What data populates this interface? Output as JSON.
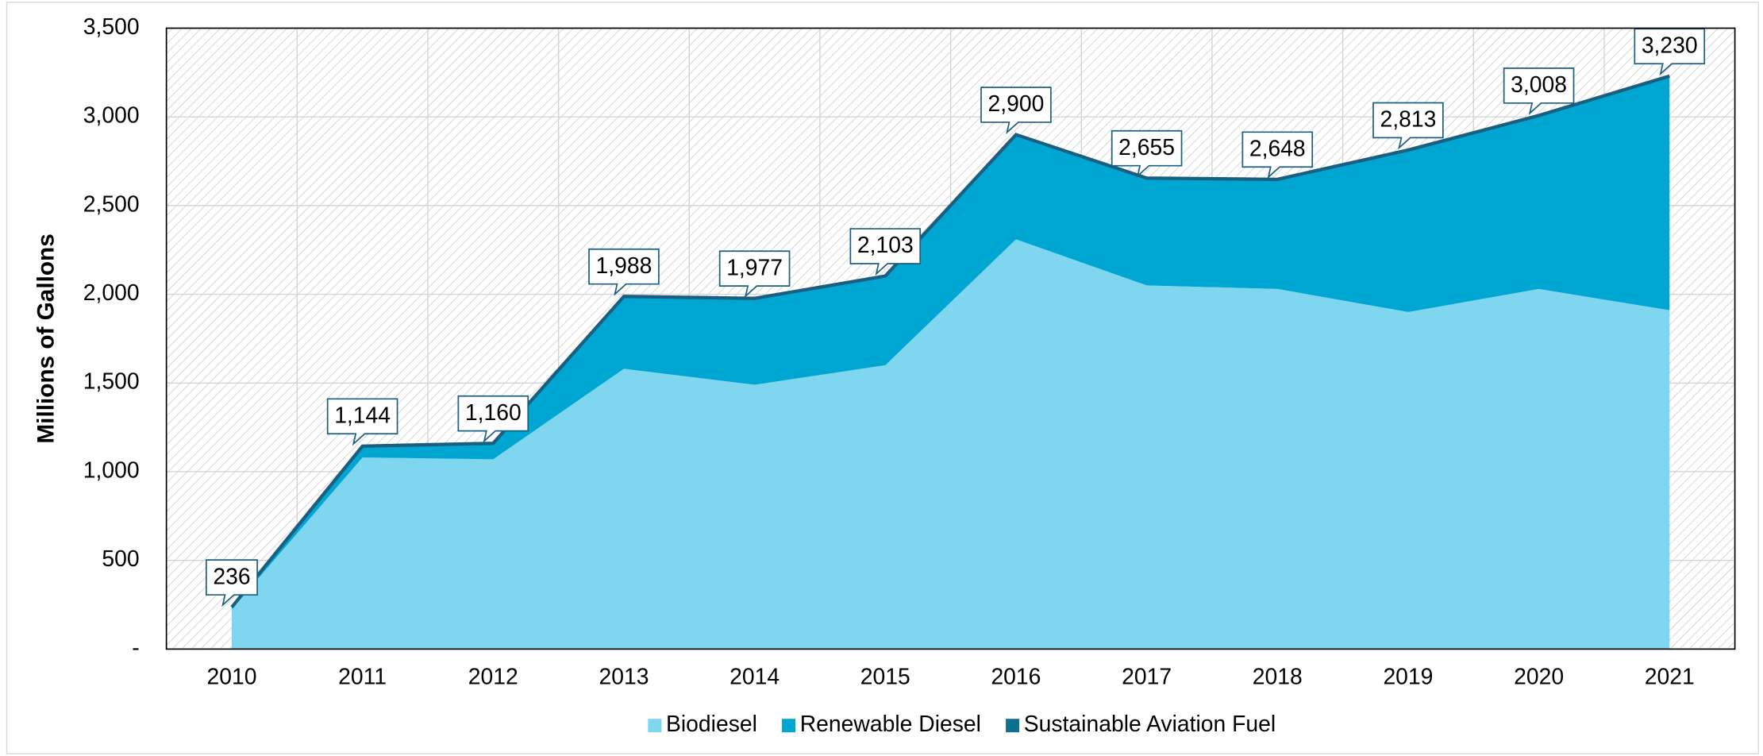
{
  "chart_data": {
    "type": "stacked_area",
    "y_axis_label": "Millions of Gallons",
    "categories": [
      "2010",
      "2011",
      "2012",
      "2013",
      "2014",
      "2015",
      "2016",
      "2017",
      "2018",
      "2019",
      "2020",
      "2021"
    ],
    "series": [
      {
        "name": "Biodiesel",
        "color": "#7fd6ef",
        "values": [
          225,
          1080,
          1070,
          1580,
          1490,
          1600,
          2310,
          2050,
          2030,
          1900,
          2030,
          1910
        ]
      },
      {
        "name": "Renewable Diesel",
        "color": "#00a6d2",
        "values": [
          11,
          64,
          90,
          408,
          487,
          503,
          588,
          603,
          616,
          910,
          973,
          1315
        ]
      },
      {
        "name": "Sustainable Aviation Fuel",
        "color": "#0e7090",
        "values": [
          0,
          0,
          0,
          0,
          0,
          0,
          2,
          2,
          2,
          3,
          5,
          5
        ]
      }
    ],
    "totals": [
      236,
      1144,
      1160,
      1988,
      1977,
      2103,
      2900,
      2655,
      2648,
      2813,
      3008,
      3230
    ],
    "totals_value_labels": [
      "236",
      "1,144",
      "1,160",
      "1,988",
      "1,977",
      "2,103",
      "2,900",
      "2,655",
      "2,648",
      "2,813",
      "3,008",
      "3,230"
    ],
    "ylim": [
      0,
      3500
    ],
    "yticks": [
      {
        "value": 0,
        "label": "-"
      },
      500,
      {
        "value": 1000,
        "label": "1,000"
      },
      {
        "value": 1500,
        "label": "1,500"
      },
      {
        "value": 2000,
        "label": "2,000"
      },
      {
        "value": 2500,
        "label": "2,500"
      },
      {
        "value": 3000,
        "label": "3,000"
      },
      {
        "value": 3500,
        "label": "3,500"
      }
    ],
    "grid": true,
    "legend": "bottom"
  }
}
